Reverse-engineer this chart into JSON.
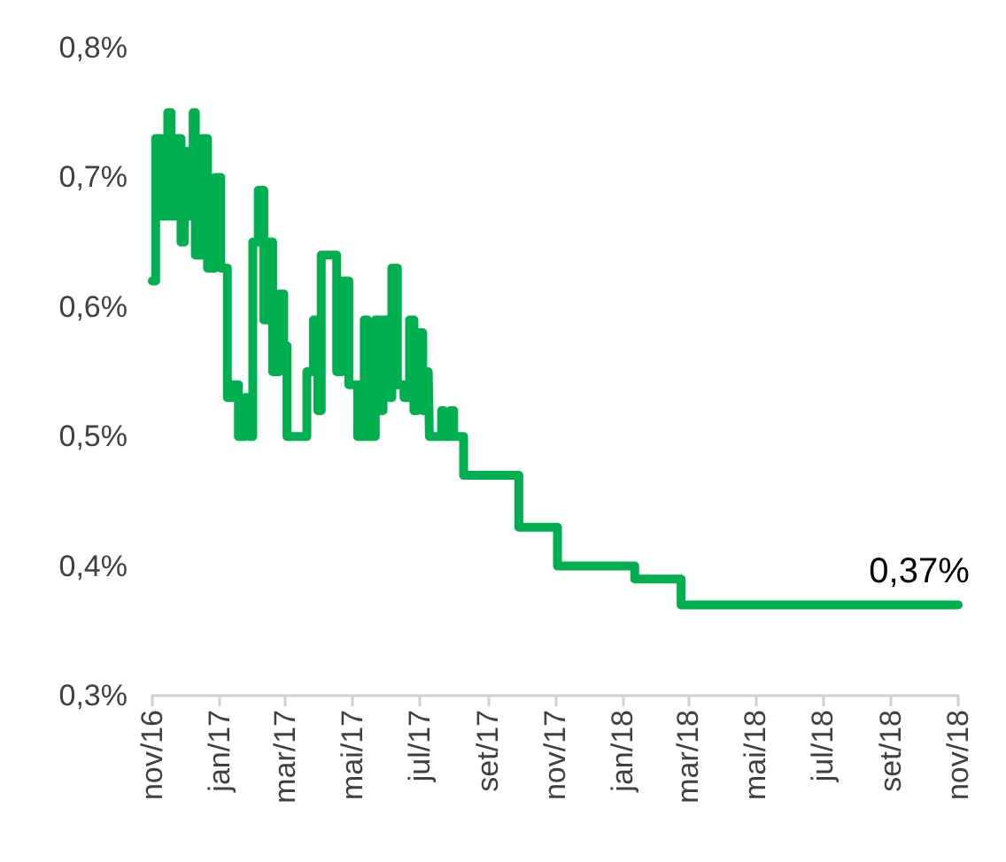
{
  "chart_data": {
    "type": "step",
    "x": [
      "2016-11-01",
      "2016-11-04",
      "2016-11-09",
      "2016-11-15",
      "2016-11-18",
      "2016-11-23",
      "2016-11-27",
      "2016-11-30",
      "2016-12-04",
      "2016-12-08",
      "2016-12-10",
      "2016-12-16",
      "2016-12-21",
      "2016-12-28",
      "2017-01-02",
      "2017-01-08",
      "2017-01-13",
      "2017-01-18",
      "2017-01-24",
      "2017-01-28",
      "2017-01-31",
      "2017-02-05",
      "2017-02-10",
      "2017-02-14",
      "2017-02-18",
      "2017-02-24",
      "2017-02-28",
      "2017-03-03",
      "2017-03-16",
      "2017-03-21",
      "2017-03-27",
      "2017-03-31",
      "2017-04-03",
      "2017-04-13",
      "2017-04-17",
      "2017-04-22",
      "2017-04-28",
      "2017-05-01",
      "2017-05-06",
      "2017-05-12",
      "2017-05-15",
      "2017-05-22",
      "2017-05-26",
      "2017-05-29",
      "2017-06-03",
      "2017-06-06",
      "2017-06-11",
      "2017-06-17",
      "2017-06-22",
      "2017-06-26",
      "2017-06-29",
      "2017-07-04",
      "2017-07-09",
      "2017-07-10",
      "2017-07-21",
      "2017-07-23",
      "2017-07-29",
      "2017-08-01",
      "2017-08-10",
      "2017-09-29",
      "2017-11-03",
      "2018-01-12",
      "2018-02-23",
      "2018-11-01"
    ],
    "series": [
      {
        "color": "#00b050",
        "values": [
          0.62,
          0.73,
          0.67,
          0.75,
          0.67,
          0.73,
          0.65,
          0.72,
          0.67,
          0.75,
          0.64,
          0.73,
          0.63,
          0.7,
          0.63,
          0.53,
          0.54,
          0.5,
          0.53,
          0.5,
          0.65,
          0.69,
          0.59,
          0.65,
          0.55,
          0.61,
          0.57,
          0.5,
          0.5,
          0.55,
          0.59,
          0.52,
          0.64,
          0.64,
          0.55,
          0.62,
          0.54,
          0.54,
          0.5,
          0.59,
          0.5,
          0.59,
          0.52,
          0.59,
          0.53,
          0.63,
          0.54,
          0.53,
          0.59,
          0.52,
          0.58,
          0.52,
          0.55,
          0.5,
          0.52,
          0.5,
          0.52,
          0.5,
          0.47,
          0.43,
          0.4,
          0.39,
          0.37,
          0.37
        ]
      }
    ],
    "xlim": [
      "2016-11-01",
      "2018-11-01"
    ],
    "xticks": [
      {
        "value": "2016-11-01",
        "label": "nov/16"
      },
      {
        "value": "2017-01-01",
        "label": "jan/17"
      },
      {
        "value": "2017-03-01",
        "label": "mar/17"
      },
      {
        "value": "2017-05-01",
        "label": "mai/17"
      },
      {
        "value": "2017-07-01",
        "label": "jul/17"
      },
      {
        "value": "2017-09-01",
        "label": "set/17"
      },
      {
        "value": "2017-11-01",
        "label": "nov/17"
      },
      {
        "value": "2018-01-01",
        "label": "jan/18"
      },
      {
        "value": "2018-03-01",
        "label": "mar/18"
      },
      {
        "value": "2018-05-01",
        "label": "mai/18"
      },
      {
        "value": "2018-07-01",
        "label": "jul/18"
      },
      {
        "value": "2018-09-01",
        "label": "set/18"
      },
      {
        "value": "2018-11-01",
        "label": "nov/18"
      }
    ],
    "ylim": [
      0.3,
      0.8
    ],
    "yticks": [
      {
        "value": 0.3,
        "label": "0,3%"
      },
      {
        "value": 0.4,
        "label": "0,4%"
      },
      {
        "value": 0.5,
        "label": "0,5%"
      },
      {
        "value": 0.6,
        "label": "0,6%"
      },
      {
        "value": 0.7,
        "label": "0,7%"
      },
      {
        "value": 0.8,
        "label": "0,8%"
      }
    ],
    "annotations": [
      {
        "text": "0,37%",
        "x": "2018-11-01",
        "y": 0.37
      }
    ],
    "grid": false
  }
}
